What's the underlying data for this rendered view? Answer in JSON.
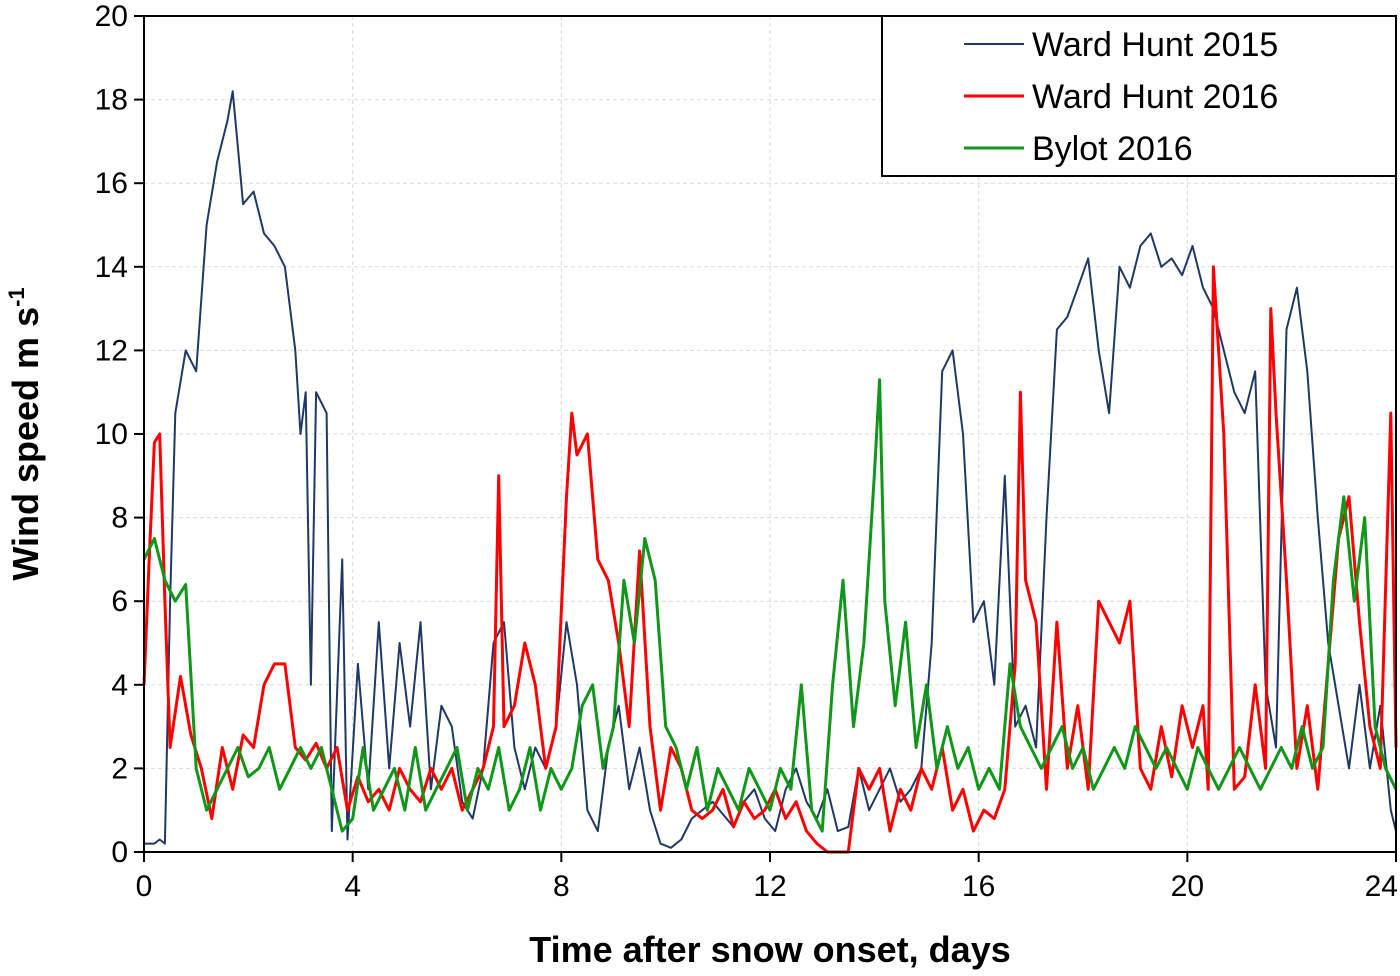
{
  "chart_data": {
    "type": "line",
    "title": "",
    "xlabel": "Time after snow onset, days",
    "ylabel_main": "Wind speed m s",
    "ylabel_sup": "-1",
    "xlim": [
      0,
      24
    ],
    "ylim": [
      0,
      20
    ],
    "xticks": [
      "0",
      "4",
      "8",
      "12",
      "16",
      "20",
      "24"
    ],
    "yticks": [
      "0",
      "2",
      "4",
      "6",
      "8",
      "10",
      "12",
      "14",
      "16",
      "18",
      "20"
    ],
    "grid": true,
    "legend_position": "top-right",
    "series": [
      {
        "name": "Ward Hunt 2015",
        "color": "#1f3864",
        "x": [
          0,
          0.2,
          0.3,
          0.4,
          0.5,
          0.6,
          0.8,
          1.0,
          1.2,
          1.4,
          1.6,
          1.7,
          1.9,
          2.1,
          2.3,
          2.5,
          2.7,
          2.9,
          3.0,
          3.1,
          3.2,
          3.3,
          3.5,
          3.6,
          3.8,
          3.9,
          4.1,
          4.3,
          4.5,
          4.7,
          4.9,
          5.1,
          5.3,
          5.5,
          5.7,
          5.9,
          6.1,
          6.3,
          6.5,
          6.7,
          6.9,
          7.1,
          7.3,
          7.5,
          7.7,
          7.9,
          8.1,
          8.3,
          8.5,
          8.7,
          8.9,
          9.1,
          9.3,
          9.5,
          9.7,
          9.9,
          10.1,
          10.3,
          10.5,
          10.7,
          10.9,
          11.1,
          11.3,
          11.5,
          11.7,
          11.9,
          12.1,
          12.3,
          12.5,
          12.7,
          12.9,
          13.1,
          13.3,
          13.5,
          13.7,
          13.9,
          14.1,
          14.3,
          14.5,
          14.7,
          14.9,
          15.1,
          15.3,
          15.5,
          15.7,
          15.9,
          16.1,
          16.3,
          16.5,
          16.7,
          16.9,
          17.1,
          17.3,
          17.5,
          17.7,
          17.9,
          18.1,
          18.3,
          18.5,
          18.7,
          18.9,
          19.1,
          19.3,
          19.5,
          19.7,
          19.9,
          20.1,
          20.3,
          20.5,
          20.7,
          20.9,
          21.1,
          21.3,
          21.5,
          21.7,
          21.9,
          22.1,
          22.3,
          22.5,
          22.7,
          22.9,
          23.1,
          23.3,
          23.5,
          23.7,
          23.9,
          24.0
        ],
        "y": [
          0.2,
          0.2,
          0.3,
          0.2,
          6.0,
          10.5,
          12.0,
          11.5,
          15.0,
          16.5,
          17.5,
          18.2,
          15.5,
          15.8,
          14.8,
          14.5,
          14.0,
          12.0,
          10.0,
          11.0,
          4.0,
          11.0,
          10.5,
          0.5,
          7.0,
          0.3,
          4.5,
          1.5,
          5.5,
          2.0,
          5.0,
          3.0,
          5.5,
          1.5,
          3.5,
          3.0,
          1.2,
          0.8,
          2.0,
          5.0,
          5.5,
          2.5,
          1.5,
          2.5,
          2.0,
          3.0,
          5.5,
          4.0,
          1.0,
          0.5,
          2.5,
          3.5,
          1.5,
          2.5,
          1.0,
          0.2,
          0.1,
          0.3,
          0.8,
          1.0,
          1.2,
          0.9,
          0.6,
          1.2,
          1.5,
          0.8,
          0.5,
          1.5,
          2.0,
          1.2,
          0.8,
          1.5,
          0.5,
          0.6,
          2.0,
          1.0,
          1.5,
          2.0,
          1.2,
          1.5,
          2.0,
          5.0,
          11.5,
          12.0,
          10.0,
          5.5,
          6.0,
          4.0,
          9.0,
          3.0,
          3.5,
          2.5,
          8.0,
          12.5,
          12.8,
          13.5,
          14.2,
          12.0,
          10.5,
          14.0,
          13.5,
          14.5,
          14.8,
          14.0,
          14.2,
          13.8,
          14.5,
          13.5,
          13.0,
          12.0,
          11.0,
          10.5,
          11.5,
          4.0,
          2.5,
          12.5,
          13.5,
          11.5,
          8.0,
          5.0,
          3.5,
          2.0,
          4.0,
          2.0,
          3.5,
          1.0,
          0.5
        ]
      },
      {
        "name": "Ward Hunt 2016",
        "color": "#ff0000",
        "x": [
          0,
          0.1,
          0.2,
          0.3,
          0.4,
          0.5,
          0.7,
          0.9,
          1.1,
          1.3,
          1.5,
          1.7,
          1.9,
          2.1,
          2.3,
          2.5,
          2.7,
          2.9,
          3.1,
          3.3,
          3.5,
          3.7,
          3.9,
          4.1,
          4.3,
          4.5,
          4.7,
          4.9,
          5.1,
          5.3,
          5.5,
          5.7,
          5.9,
          6.1,
          6.3,
          6.5,
          6.7,
          6.8,
          6.9,
          7.1,
          7.3,
          7.5,
          7.7,
          7.9,
          8.1,
          8.2,
          8.3,
          8.5,
          8.7,
          8.9,
          9.1,
          9.3,
          9.5,
          9.7,
          9.9,
          10.1,
          10.3,
          10.5,
          10.7,
          10.9,
          11.1,
          11.3,
          11.5,
          11.7,
          11.9,
          12.1,
          12.3,
          12.5,
          12.7,
          12.9,
          13.1,
          13.3,
          13.5,
          13.7,
          13.9,
          14.1,
          14.3,
          14.5,
          14.7,
          14.9,
          15.1,
          15.3,
          15.5,
          15.7,
          15.9,
          16.1,
          16.3,
          16.5,
          16.7,
          16.8,
          16.9,
          17.1,
          17.3,
          17.5,
          17.7,
          17.9,
          18.1,
          18.3,
          18.5,
          18.7,
          18.9,
          19.1,
          19.3,
          19.5,
          19.7,
          19.9,
          20.1,
          20.3,
          20.4,
          20.5,
          20.7,
          20.9,
          21.1,
          21.3,
          21.5,
          21.6,
          21.7,
          21.9,
          22.1,
          22.3,
          22.5,
          22.7,
          22.9,
          23.1,
          23.3,
          23.5,
          23.7,
          23.9,
          24.0
        ],
        "y": [
          4.0,
          7.0,
          9.8,
          10.0,
          6.0,
          2.5,
          4.2,
          2.8,
          2.0,
          0.8,
          2.5,
          1.5,
          2.8,
          2.5,
          4.0,
          4.5,
          4.5,
          2.5,
          2.2,
          2.6,
          2.0,
          2.5,
          1.0,
          1.8,
          1.2,
          1.5,
          1.0,
          2.0,
          1.5,
          1.2,
          2.0,
          1.5,
          2.0,
          1.0,
          1.5,
          2.0,
          3.0,
          9.0,
          3.0,
          3.5,
          5.0,
          4.0,
          2.0,
          3.0,
          8.5,
          10.5,
          9.5,
          10.0,
          7.0,
          6.5,
          5.0,
          3.0,
          7.2,
          3.0,
          1.0,
          2.5,
          2.0,
          1.0,
          0.8,
          1.0,
          1.5,
          0.6,
          1.2,
          0.8,
          1.0,
          1.5,
          0.8,
          1.2,
          0.5,
          0.2,
          0.0,
          0.0,
          0.0,
          2.0,
          1.5,
          2.0,
          0.5,
          1.5,
          1.0,
          2.0,
          1.5,
          2.5,
          1.0,
          1.5,
          0.5,
          1.0,
          0.8,
          1.5,
          4.5,
          11.0,
          6.5,
          5.5,
          1.5,
          5.5,
          2.0,
          3.5,
          1.5,
          6.0,
          5.5,
          5.0,
          6.0,
          2.0,
          1.5,
          3.0,
          1.8,
          3.5,
          2.5,
          3.5,
          1.5,
          14.0,
          10.0,
          1.5,
          1.8,
          4.0,
          2.0,
          13.0,
          10.5,
          6.5,
          2.0,
          3.5,
          1.5,
          4.5,
          7.5,
          8.5,
          5.5,
          3.0,
          2.0,
          10.5,
          2.5
        ]
      },
      {
        "name": "Bylot 2016",
        "color": "#109618",
        "x": [
          0,
          0.2,
          0.4,
          0.6,
          0.8,
          1.0,
          1.2,
          1.4,
          1.6,
          1.8,
          2.0,
          2.2,
          2.4,
          2.6,
          2.8,
          3.0,
          3.2,
          3.4,
          3.6,
          3.8,
          4.0,
          4.2,
          4.4,
          4.6,
          4.8,
          5.0,
          5.2,
          5.4,
          5.6,
          5.8,
          6.0,
          6.2,
          6.4,
          6.6,
          6.8,
          7.0,
          7.2,
          7.4,
          7.6,
          7.8,
          8.0,
          8.2,
          8.4,
          8.6,
          8.8,
          9.0,
          9.2,
          9.4,
          9.6,
          9.8,
          10.0,
          10.2,
          10.4,
          10.6,
          10.8,
          11.0,
          11.2,
          11.4,
          11.6,
          11.8,
          12.0,
          12.2,
          12.4,
          12.6,
          12.8,
          13.0,
          13.2,
          13.4,
          13.6,
          13.8,
          14.0,
          14.1,
          14.2,
          14.4,
          14.6,
          14.8,
          15.0,
          15.2,
          15.4,
          15.6,
          15.8,
          16.0,
          16.2,
          16.4,
          16.6,
          16.8,
          17.0,
          17.2,
          17.4,
          17.6,
          17.8,
          18.0,
          18.2,
          18.4,
          18.6,
          18.8,
          19.0,
          19.2,
          19.4,
          19.6,
          19.8,
          20.0,
          20.2,
          20.4,
          20.6,
          20.8,
          21.0,
          21.2,
          21.4,
          21.6,
          21.8,
          22.0,
          22.2,
          22.4,
          22.6,
          22.8,
          23.0,
          23.2,
          23.4,
          23.6,
          23.8,
          24.0
        ],
        "y": [
          7.0,
          7.5,
          6.5,
          6.0,
          6.4,
          2.0,
          1.0,
          1.5,
          2.0,
          2.5,
          1.8,
          2.0,
          2.5,
          1.5,
          2.0,
          2.5,
          2.0,
          2.5,
          1.5,
          0.5,
          0.8,
          2.5,
          1.0,
          1.5,
          2.0,
          1.0,
          2.5,
          1.0,
          1.5,
          2.0,
          2.5,
          1.0,
          2.0,
          1.5,
          2.5,
          1.0,
          1.5,
          2.5,
          1.0,
          2.0,
          1.5,
          2.0,
          3.5,
          4.0,
          2.0,
          3.0,
          6.5,
          5.0,
          7.5,
          6.5,
          3.0,
          2.5,
          1.5,
          2.5,
          1.0,
          2.0,
          1.5,
          1.0,
          2.0,
          1.5,
          1.0,
          2.0,
          1.5,
          4.0,
          1.0,
          0.5,
          4.0,
          6.5,
          3.0,
          5.0,
          9.0,
          11.3,
          6.0,
          3.5,
          5.5,
          2.5,
          4.0,
          2.0,
          3.0,
          2.0,
          2.5,
          1.5,
          2.0,
          1.5,
          4.5,
          3.0,
          2.5,
          2.0,
          2.5,
          3.0,
          2.0,
          2.5,
          1.5,
          2.0,
          2.5,
          2.0,
          3.0,
          2.5,
          2.0,
          2.5,
          2.0,
          1.5,
          2.5,
          2.0,
          1.5,
          2.0,
          2.5,
          2.0,
          1.5,
          2.0,
          2.5,
          2.0,
          3.0,
          2.0,
          2.5,
          6.5,
          8.5,
          6.0,
          8.0,
          3.0,
          2.0,
          1.5
        ]
      }
    ]
  }
}
